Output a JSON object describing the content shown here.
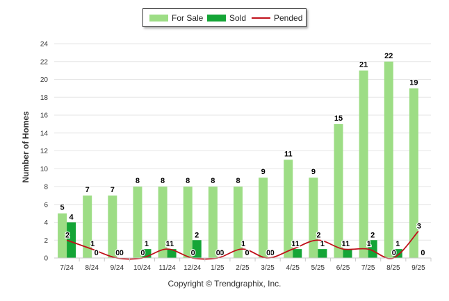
{
  "legend": {
    "items": [
      {
        "label": "For Sale",
        "color": "#9ddd85"
      },
      {
        "label": "Sold",
        "color": "#14a536"
      },
      {
        "label": "Pended",
        "color": "#c0101a"
      }
    ]
  },
  "copyright": "Copyright © Trendgraphix, Inc.",
  "chart_data": {
    "type": "bar",
    "categories": [
      "7/24",
      "8/24",
      "9/24",
      "10/24",
      "11/24",
      "12/24",
      "1/25",
      "2/25",
      "3/25",
      "4/25",
      "5/25",
      "6/25",
      "7/25",
      "8/25",
      "9/25"
    ],
    "series": [
      {
        "name": "For Sale",
        "type": "bar",
        "color": "#9ddd85",
        "values": [
          5,
          7,
          7,
          8,
          8,
          8,
          8,
          8,
          9,
          11,
          9,
          15,
          21,
          22,
          19
        ]
      },
      {
        "name": "Sold",
        "type": "bar",
        "color": "#14a536",
        "values": [
          4,
          0,
          0,
          1,
          1,
          2,
          0,
          0,
          0,
          1,
          1,
          1,
          2,
          1,
          0
        ]
      },
      {
        "name": "Pended",
        "type": "line",
        "color": "#c0101a",
        "values": [
          2,
          1,
          0,
          0,
          1,
          0,
          0,
          1,
          0,
          1,
          2,
          1,
          1,
          0,
          3
        ]
      }
    ],
    "ylabel": "Number of Homes",
    "xlabel": "",
    "ylim": [
      0,
      24
    ],
    "yticks": [
      0,
      2,
      4,
      6,
      8,
      10,
      12,
      14,
      16,
      18,
      20,
      22,
      24
    ],
    "grid": true,
    "legend_position": "top-center"
  }
}
